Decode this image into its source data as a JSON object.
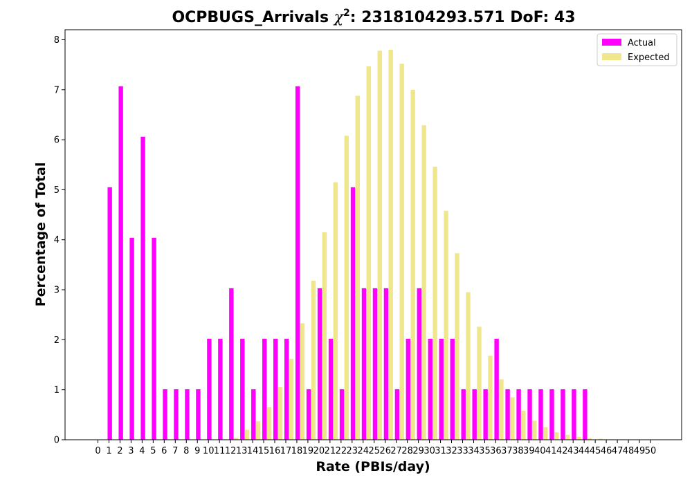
{
  "chart_data": {
    "type": "bar",
    "title": "OCPBUGS_Arrivals χ²: 2318104293.571 DoF: 43",
    "title_parts": {
      "prefix": "OCPBUGS_Arrivals ",
      "chi": "χ",
      "sup": "2",
      "suffix": ": 2318104293.571 DoF: 43"
    },
    "xlabel": "Rate (PBIs/day)",
    "ylabel": "Percentage of Total",
    "ylim": [
      0,
      8.2
    ],
    "yticks": [
      0,
      1,
      2,
      3,
      4,
      5,
      6,
      7,
      8
    ],
    "categories": [
      0,
      1,
      2,
      3,
      4,
      5,
      6,
      7,
      8,
      9,
      10,
      11,
      12,
      13,
      14,
      15,
      16,
      17,
      18,
      19,
      20,
      21,
      22,
      23,
      24,
      25,
      26,
      27,
      28,
      29,
      30,
      31,
      32,
      33,
      34,
      35,
      36,
      37,
      38,
      39,
      40,
      41,
      42,
      43,
      44,
      45,
      46,
      47,
      48,
      49,
      50
    ],
    "legend_position": "top-right",
    "series": [
      {
        "name": "Actual",
        "color": "#ff00ff",
        "values": [
          0,
          5.05,
          7.07,
          4.04,
          6.06,
          4.04,
          1.01,
          1.01,
          1.01,
          1.01,
          2.02,
          2.02,
          3.03,
          2.02,
          1.01,
          2.02,
          2.02,
          2.02,
          7.07,
          1.01,
          3.03,
          2.02,
          1.01,
          5.05,
          3.03,
          3.03,
          3.03,
          1.01,
          2.02,
          3.03,
          2.02,
          2.02,
          2.02,
          1.01,
          1.01,
          1.01,
          2.02,
          1.01,
          1.01,
          1.01,
          1.01,
          1.01,
          1.01,
          1.01,
          1.01,
          0,
          0,
          0,
          0,
          0,
          0
        ]
      },
      {
        "name": "Expected",
        "color": "#f0e68c",
        "values": [
          0,
          0,
          0,
          0,
          0,
          0,
          0,
          0,
          0,
          0,
          0,
          0.01,
          0.04,
          0.2,
          0.37,
          0.65,
          1.05,
          1.62,
          2.33,
          3.18,
          4.15,
          5.15,
          6.08,
          6.88,
          7.47,
          7.78,
          7.8,
          7.52,
          7,
          6.29,
          5.46,
          4.58,
          3.73,
          2.95,
          2.26,
          1.68,
          1.21,
          0.85,
          0.58,
          0.38,
          0.25,
          0.15,
          0.1,
          0.06,
          0.03,
          0.02,
          0.01,
          0.01,
          0,
          0,
          0
        ]
      }
    ]
  }
}
